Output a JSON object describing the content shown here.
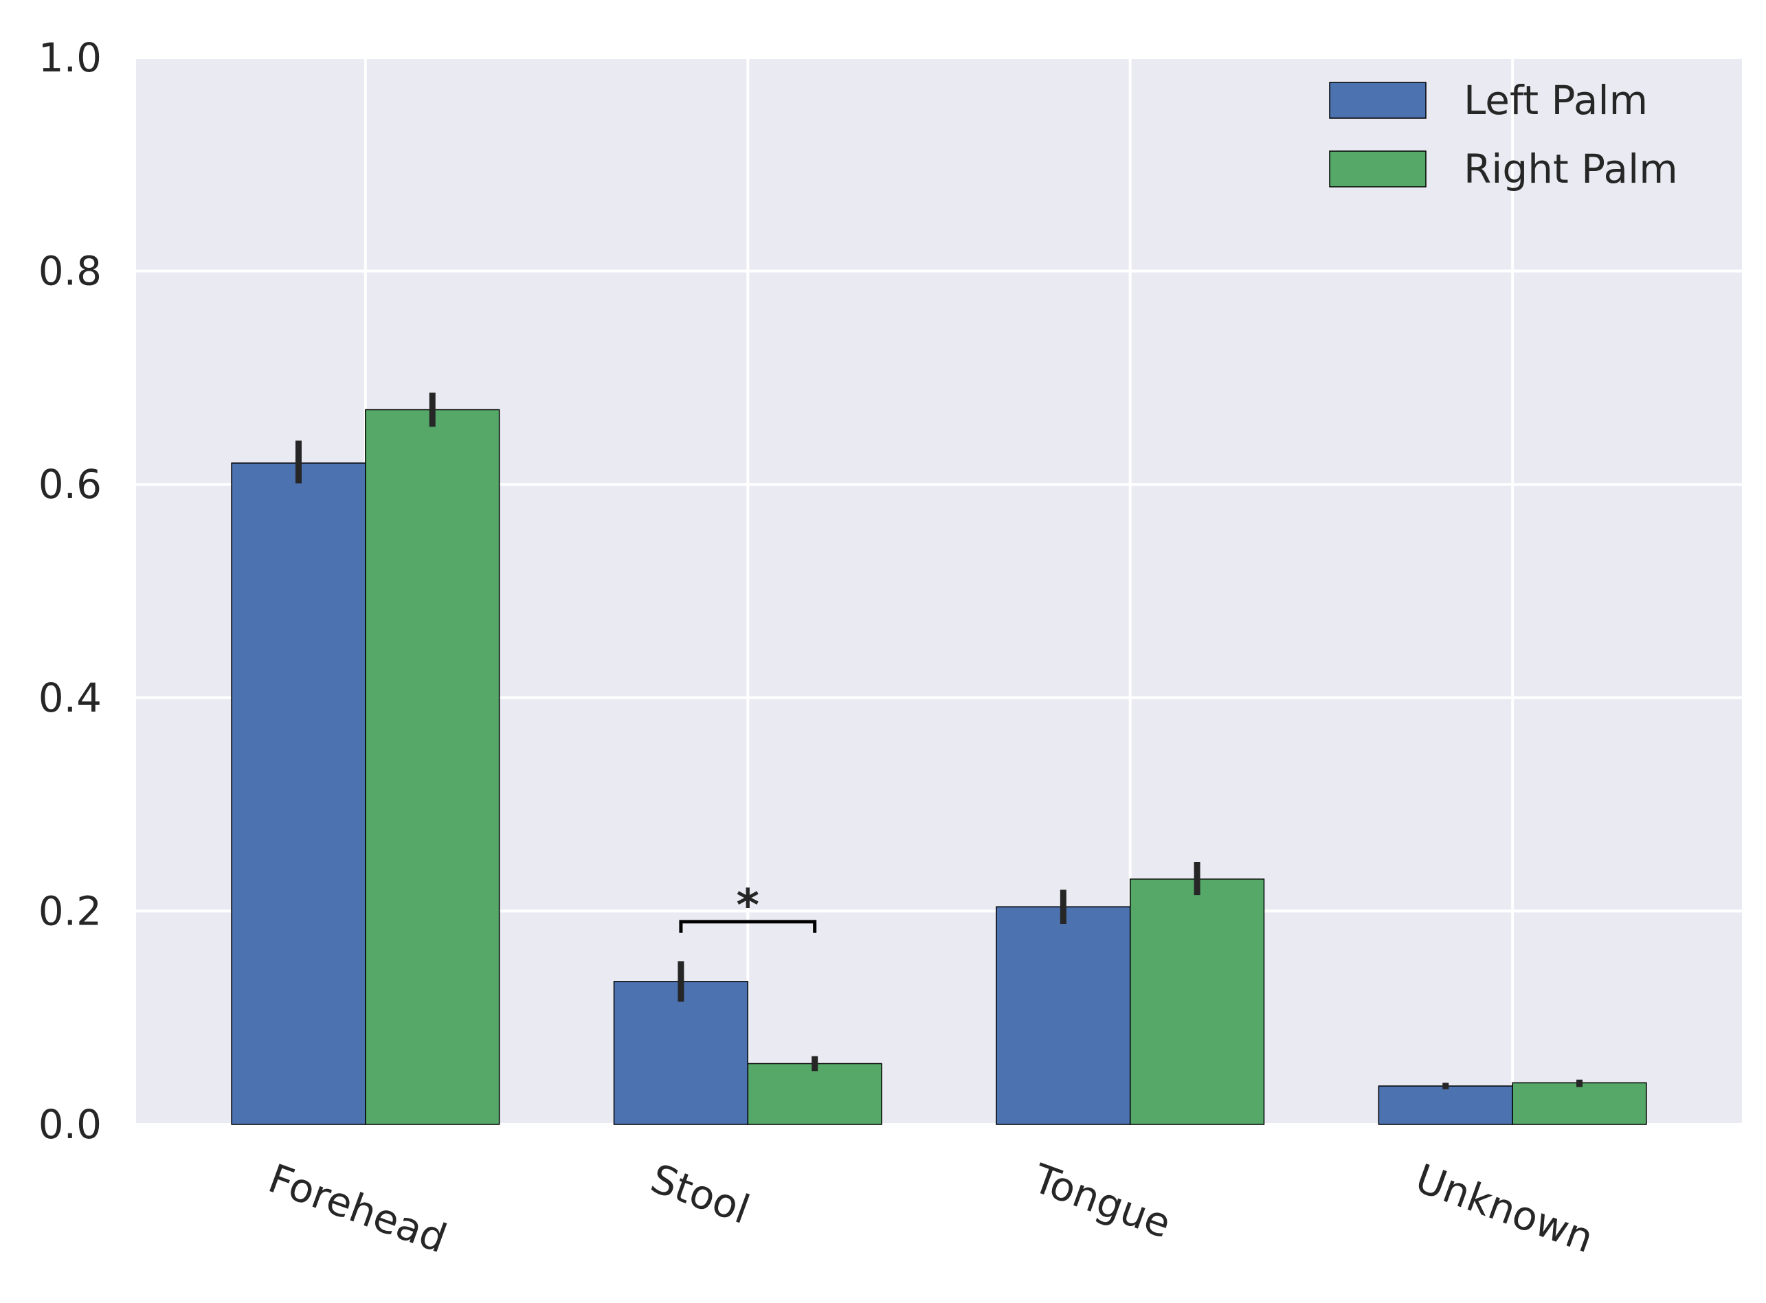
{
  "chart_data": {
    "type": "bar",
    "categories": [
      "Forehead",
      "Stool",
      "Tongue",
      "Unknown"
    ],
    "series": [
      {
        "name": "Left Palm",
        "color": "#4c72b0",
        "values": [
          0.62,
          0.134,
          0.204,
          0.036
        ],
        "error_low": [
          0.601,
          0.115,
          0.188,
          0.033
        ],
        "error_high": [
          0.641,
          0.153,
          0.22,
          0.039
        ]
      },
      {
        "name": "Right Palm",
        "color": "#55a868",
        "values": [
          0.67,
          0.057,
          0.23,
          0.039
        ],
        "error_low": [
          0.654,
          0.05,
          0.215,
          0.035
        ],
        "error_high": [
          0.686,
          0.064,
          0.246,
          0.042
        ]
      }
    ],
    "ylim": [
      0,
      1.0
    ],
    "yticks": [
      "0.0",
      "0.2",
      "0.4",
      "0.6",
      "0.8",
      "1.0"
    ],
    "grid": true,
    "legend_position": "top-right",
    "annotations": [
      {
        "category": "Stool",
        "text": "*",
        "bracket_level": 0.19
      }
    ],
    "background_color": "#eaeaf2",
    "grid_color": "#ffffff",
    "error_color": "#262626"
  }
}
